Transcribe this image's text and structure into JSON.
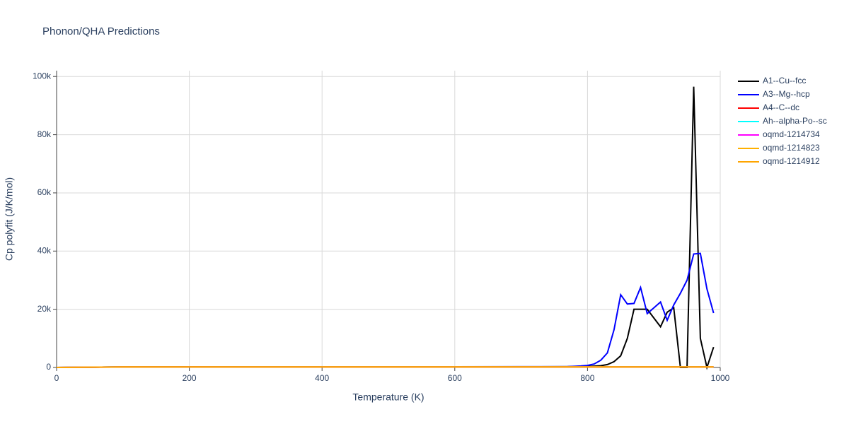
{
  "chart_data": {
    "type": "line",
    "title": "Phonon/QHA Predictions",
    "x_label": "Temperature (K)",
    "y_label": "Cp polyfit (J/K/mol)",
    "x": [
      0,
      100,
      200,
      300,
      400,
      500,
      600,
      700,
      770,
      780,
      790,
      800,
      810,
      820,
      830,
      840,
      850,
      860,
      870,
      880,
      890,
      900,
      910,
      920,
      930,
      940,
      950,
      960,
      970,
      980,
      990
    ],
    "xlim": [
      0,
      1000
    ],
    "xticks": [
      0,
      200,
      400,
      600,
      800,
      1000
    ],
    "ylim": [
      0,
      102000
    ],
    "yticks": [
      0,
      {
        "value": 20000,
        "label": "20k"
      },
      {
        "value": 40000,
        "label": "40k"
      },
      {
        "value": 60000,
        "label": "60k"
      },
      {
        "value": 80000,
        "label": "80k"
      },
      {
        "value": 100000,
        "label": "100k"
      }
    ],
    "grid": true,
    "legend": "right",
    "series": [
      {
        "name": "A1--Cu--fcc",
        "color": "#000000",
        "values": [
          0,
          200,
          220,
          230,
          240,
          240,
          250,
          250,
          260,
          280,
          300,
          350,
          450,
          600,
          1000,
          2000,
          4000,
          10000,
          20000,
          20000,
          20000,
          17000,
          14000,
          19000,
          20500,
          0,
          0,
          96500,
          10000,
          0,
          7000
        ]
      },
      {
        "name": "A3--Mg--hcp",
        "color": "#0000ff",
        "values": [
          0,
          200,
          220,
          230,
          240,
          240,
          250,
          260,
          300,
          400,
          500,
          700,
          1200,
          2500,
          5000,
          13000,
          25000,
          21800,
          22000,
          27500,
          18500,
          20500,
          22500,
          16200,
          21500,
          25500,
          30000,
          39000,
          39200,
          27000,
          18700
        ]
      },
      {
        "name": "A4--C--dc",
        "color": "#ff0000",
        "values": [
          0,
          150,
          180,
          190,
          200,
          200,
          200,
          200,
          200,
          200,
          200,
          200,
          200,
          200,
          200,
          200,
          200,
          200,
          200,
          200,
          200,
          200,
          200,
          200,
          200,
          200,
          200,
          200,
          200,
          200,
          200
        ]
      },
      {
        "name": "Ah--alpha-Po--sc",
        "color": "#00ffff",
        "values": [
          0,
          180,
          200,
          210,
          210,
          210,
          210,
          210,
          210,
          210,
          210,
          210,
          210,
          210,
          210,
          210,
          210,
          210,
          210,
          210,
          210,
          210,
          210,
          210,
          210,
          210,
          210,
          210,
          210,
          210,
          210
        ]
      },
      {
        "name": "oqmd-1214734",
        "color": "#ff00ff",
        "values": [
          0,
          170,
          190,
          200,
          200,
          200,
          200,
          200,
          200,
          200,
          200,
          200,
          200,
          200,
          200,
          200,
          200,
          200,
          200,
          200,
          200,
          200,
          200,
          200,
          200,
          200,
          200,
          200,
          200,
          200,
          200
        ]
      },
      {
        "name": "oqmd-1214823",
        "color": "#ffb000",
        "values": [
          0,
          160,
          190,
          200,
          200,
          200,
          200,
          200,
          200,
          200,
          200,
          200,
          200,
          200,
          200,
          200,
          200,
          200,
          200,
          200,
          200,
          200,
          200,
          200,
          200,
          200,
          200,
          200,
          200,
          200,
          200
        ]
      },
      {
        "name": "oqmd-1214912",
        "color": "#ffa500",
        "values": [
          0,
          160,
          190,
          200,
          200,
          200,
          200,
          200,
          200,
          200,
          200,
          200,
          200,
          200,
          200,
          200,
          200,
          200,
          200,
          200,
          200,
          200,
          200,
          200,
          200,
          200,
          200,
          200,
          200,
          200,
          200
        ]
      }
    ]
  }
}
